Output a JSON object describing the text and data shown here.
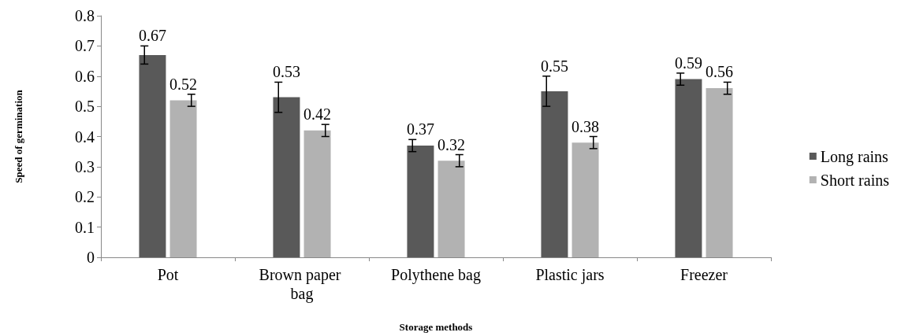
{
  "chart_data": {
    "type": "bar",
    "xlabel": "Storage methods",
    "ylabel": "Speed of germination",
    "categories": [
      "Pot",
      "Brown paper bag",
      "Polythene bag",
      "Plastic jars",
      "Freezer"
    ],
    "series": [
      {
        "name": "Long rains",
        "color": "#595959",
        "values": [
          0.67,
          0.53,
          0.37,
          0.55,
          0.59
        ],
        "errors": [
          0.03,
          0.05,
          0.02,
          0.05,
          0.02
        ]
      },
      {
        "name": "Short rains",
        "color": "#b2b2b2",
        "values": [
          0.52,
          0.42,
          0.32,
          0.38,
          0.56
        ],
        "errors": [
          0.02,
          0.02,
          0.02,
          0.02,
          0.02
        ]
      }
    ],
    "ylim": [
      0,
      0.8
    ],
    "yticks": [
      0,
      0.1,
      0.2,
      0.3,
      0.4,
      0.5,
      0.6,
      0.7,
      0.8
    ],
    "data_labels": true,
    "legend": "right",
    "grid": false
  }
}
